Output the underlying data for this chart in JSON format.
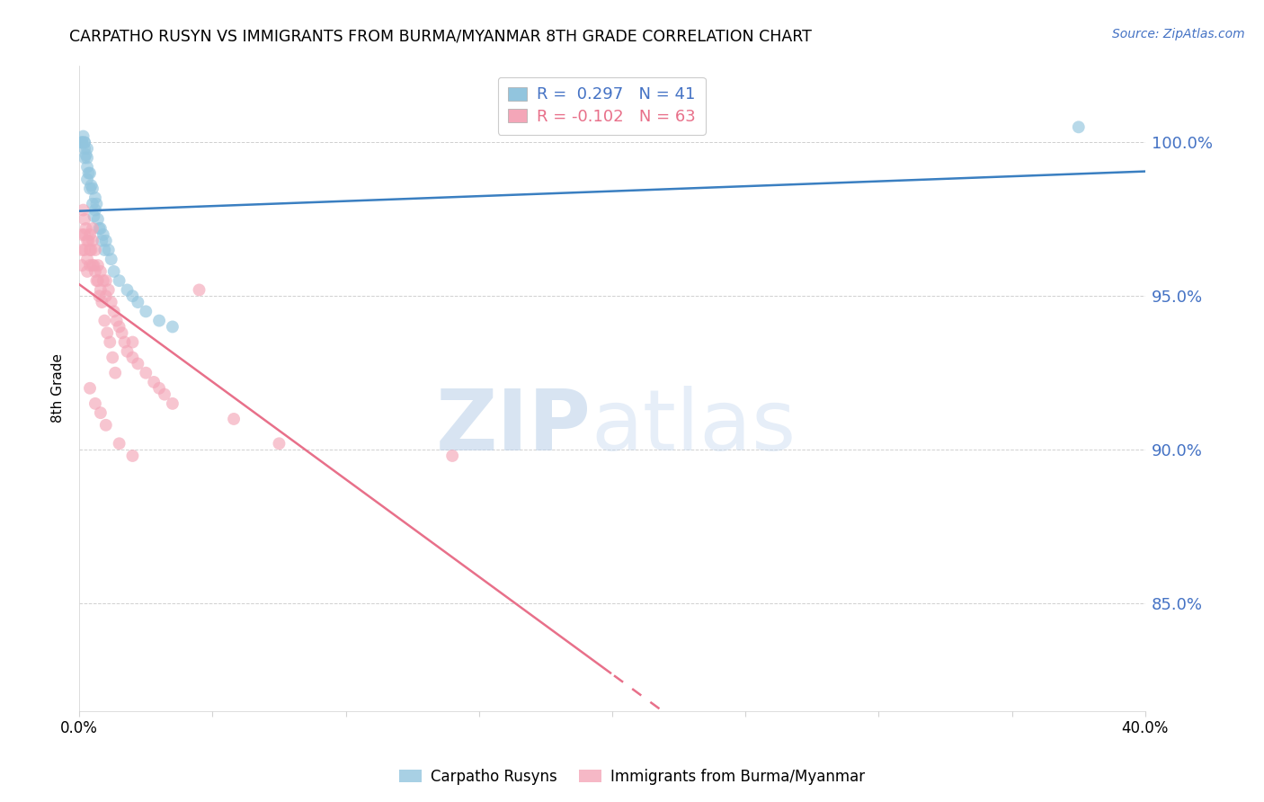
{
  "title": "CARPATHO RUSYN VS IMMIGRANTS FROM BURMA/MYANMAR 8TH GRADE CORRELATION CHART",
  "source": "Source: ZipAtlas.com",
  "ylabel": "8th Grade",
  "xlim": [
    0.0,
    40.0
  ],
  "ylim": [
    81.5,
    102.5
  ],
  "yticks": [
    85.0,
    90.0,
    95.0,
    100.0
  ],
  "ytick_labels": [
    "85.0%",
    "90.0%",
    "95.0%",
    "100.0%"
  ],
  "xticks": [
    0.0,
    5.0,
    10.0,
    15.0,
    20.0,
    25.0,
    30.0,
    35.0,
    40.0
  ],
  "legend_R_blue": "R =  0.297",
  "legend_N_blue": "N = 41",
  "legend_R_pink": "R = -0.102",
  "legend_N_pink": "N = 63",
  "blue_color": "#92c5de",
  "pink_color": "#f4a6b8",
  "blue_line_color": "#3a7fc1",
  "pink_line_color": "#e8708a",
  "watermark_zip": "ZIP",
  "watermark_atlas": "atlas",
  "blue_scatter_x": [
    0.1,
    0.1,
    0.1,
    0.2,
    0.2,
    0.2,
    0.2,
    0.3,
    0.3,
    0.3,
    0.3,
    0.4,
    0.4,
    0.5,
    0.5,
    0.6,
    0.6,
    0.7,
    0.8,
    0.9,
    1.0,
    1.1,
    1.2,
    1.3,
    1.5,
    1.8,
    2.0,
    2.2,
    2.5,
    3.0,
    3.5,
    0.15,
    0.25,
    0.35,
    0.45,
    0.55,
    0.65,
    0.75,
    0.85,
    0.95,
    37.5
  ],
  "blue_scatter_y": [
    100.0,
    100.0,
    100.0,
    100.0,
    100.0,
    99.8,
    99.5,
    99.8,
    99.5,
    99.2,
    98.8,
    99.0,
    98.5,
    98.5,
    98.0,
    97.8,
    98.2,
    97.5,
    97.2,
    97.0,
    96.8,
    96.5,
    96.2,
    95.8,
    95.5,
    95.2,
    95.0,
    94.8,
    94.5,
    94.2,
    94.0,
    100.2,
    99.6,
    99.0,
    98.6,
    97.6,
    98.0,
    97.2,
    96.8,
    96.5,
    100.5
  ],
  "pink_scatter_x": [
    0.1,
    0.1,
    0.1,
    0.2,
    0.2,
    0.2,
    0.3,
    0.3,
    0.3,
    0.4,
    0.4,
    0.4,
    0.5,
    0.5,
    0.5,
    0.6,
    0.6,
    0.7,
    0.7,
    0.8,
    0.8,
    0.9,
    1.0,
    1.0,
    1.1,
    1.2,
    1.3,
    1.4,
    1.5,
    1.6,
    1.7,
    1.8,
    2.0,
    2.0,
    2.2,
    2.5,
    2.8,
    3.0,
    3.2,
    3.5,
    0.15,
    0.25,
    0.35,
    0.45,
    0.55,
    0.65,
    0.75,
    0.85,
    0.95,
    1.05,
    1.15,
    1.25,
    1.35,
    4.5,
    7.5,
    14.0,
    5.8,
    0.4,
    0.6,
    0.8,
    1.0,
    1.5,
    2.0
  ],
  "pink_scatter_y": [
    97.0,
    96.5,
    96.0,
    97.5,
    97.0,
    96.5,
    96.8,
    96.2,
    95.8,
    97.0,
    96.5,
    96.0,
    97.2,
    96.8,
    96.0,
    96.5,
    95.8,
    96.0,
    95.5,
    95.8,
    95.2,
    95.5,
    95.5,
    95.0,
    95.2,
    94.8,
    94.5,
    94.2,
    94.0,
    93.8,
    93.5,
    93.2,
    93.5,
    93.0,
    92.8,
    92.5,
    92.2,
    92.0,
    91.8,
    91.5,
    97.8,
    97.2,
    96.8,
    96.5,
    96.0,
    95.5,
    95.0,
    94.8,
    94.2,
    93.8,
    93.5,
    93.0,
    92.5,
    95.2,
    90.2,
    89.8,
    91.0,
    92.0,
    91.5,
    91.2,
    90.8,
    90.2,
    89.8
  ]
}
